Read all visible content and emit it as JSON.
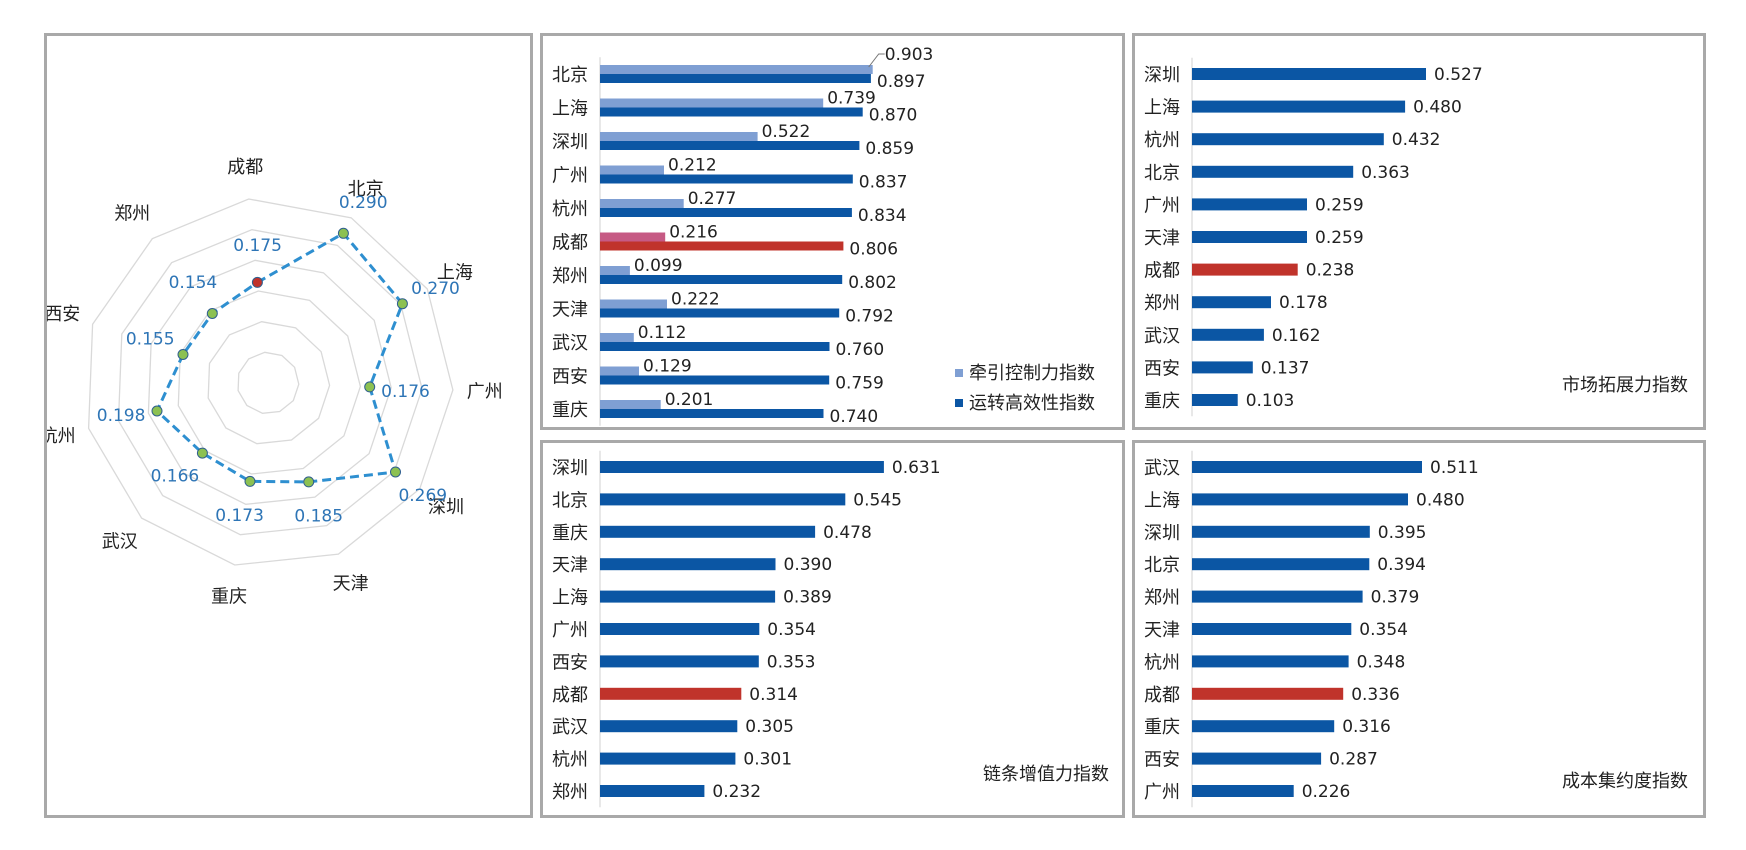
{
  "colors": {
    "dark_blue": "#0b56a4",
    "light_blue": "#7f9fd3",
    "red": "#c0332b",
    "pink": "#c65a84",
    "radar_line": "#2e8fd0",
    "radar_marker": "#8cc152",
    "grid": "#d9d9d9",
    "border": "#a9a9a9"
  },
  "chart_data": [
    {
      "type": "radar",
      "categories": [
        "成都",
        "北京",
        "上海",
        "广州",
        "深圳",
        "天津",
        "重庆",
        "武汉",
        "杭州",
        "西安",
        "郑州"
      ],
      "values": [
        0.175,
        0.29,
        0.27,
        0.176,
        0.269,
        0.185,
        0.173,
        0.166,
        0.198,
        0.155,
        0.154
      ],
      "value_labels": [
        "0.175",
        "0.290",
        "0.270",
        "0.176",
        "0.269",
        "0.185",
        "0.173",
        "0.166",
        "0.198",
        "0.155",
        "0.154"
      ],
      "highlight": "成都",
      "rmax": 0.32,
      "rings": 6
    },
    {
      "type": "bar",
      "orientation": "horizontal",
      "categories": [
        "北京",
        "上海",
        "深圳",
        "广州",
        "杭州",
        "成都",
        "郑州",
        "天津",
        "武汉",
        "西安",
        "重庆"
      ],
      "series": [
        {
          "name": "牵引控制力指数",
          "values": [
            0.903,
            0.739,
            0.522,
            0.212,
            0.277,
            0.216,
            0.099,
            0.222,
            0.112,
            0.129,
            0.201
          ],
          "labels": [
            "0.903",
            "0.739",
            "0.522",
            "0.212",
            "0.277",
            "0.216",
            "0.099",
            "0.222",
            "0.112",
            "0.129",
            "0.201"
          ]
        },
        {
          "name": "运转高效性指数",
          "values": [
            0.897,
            0.87,
            0.859,
            0.837,
            0.834,
            0.806,
            0.802,
            0.792,
            0.76,
            0.759,
            0.74
          ],
          "labels": [
            "0.897",
            "0.870",
            "0.859",
            "0.837",
            "0.834",
            "0.806",
            "0.802",
            "0.792",
            "0.760",
            "0.759",
            "0.740"
          ]
        }
      ],
      "highlight": "成都",
      "legend": "bottom-right"
    },
    {
      "type": "bar",
      "orientation": "horizontal",
      "title": "市场拓展力指数",
      "categories": [
        "深圳",
        "上海",
        "杭州",
        "北京",
        "广州",
        "天津",
        "成都",
        "郑州",
        "武汉",
        "西安",
        "重庆"
      ],
      "values": [
        0.527,
        0.48,
        0.432,
        0.363,
        0.259,
        0.259,
        0.238,
        0.178,
        0.162,
        0.137,
        0.103
      ],
      "labels": [
        "0.527",
        "0.480",
        "0.432",
        "0.363",
        "0.259",
        "0.259",
        "0.238",
        "0.178",
        "0.162",
        "0.137",
        "0.103"
      ],
      "highlight": "成都"
    },
    {
      "type": "bar",
      "orientation": "horizontal",
      "title": "链条增值力指数",
      "categories": [
        "深圳",
        "北京",
        "重庆",
        "天津",
        "上海",
        "广州",
        "西安",
        "成都",
        "武汉",
        "杭州",
        "郑州"
      ],
      "values": [
        0.631,
        0.545,
        0.478,
        0.39,
        0.389,
        0.354,
        0.353,
        0.314,
        0.305,
        0.301,
        0.232
      ],
      "labels": [
        "0.631",
        "0.545",
        "0.478",
        "0.390",
        "0.389",
        "0.354",
        "0.353",
        "0.314",
        "0.305",
        "0.301",
        "0.232"
      ],
      "highlight": "成都"
    },
    {
      "type": "bar",
      "orientation": "horizontal",
      "title": "成本集约度指数",
      "categories": [
        "武汉",
        "上海",
        "深圳",
        "北京",
        "郑州",
        "天津",
        "杭州",
        "成都",
        "重庆",
        "西安",
        "广州"
      ],
      "values": [
        0.511,
        0.48,
        0.395,
        0.394,
        0.379,
        0.354,
        0.348,
        0.336,
        0.316,
        0.287,
        0.226
      ],
      "labels": [
        "0.511",
        "0.480",
        "0.395",
        "0.394",
        "0.379",
        "0.354",
        "0.348",
        "0.336",
        "0.316",
        "0.287",
        "0.226"
      ],
      "highlight": "成都"
    }
  ]
}
